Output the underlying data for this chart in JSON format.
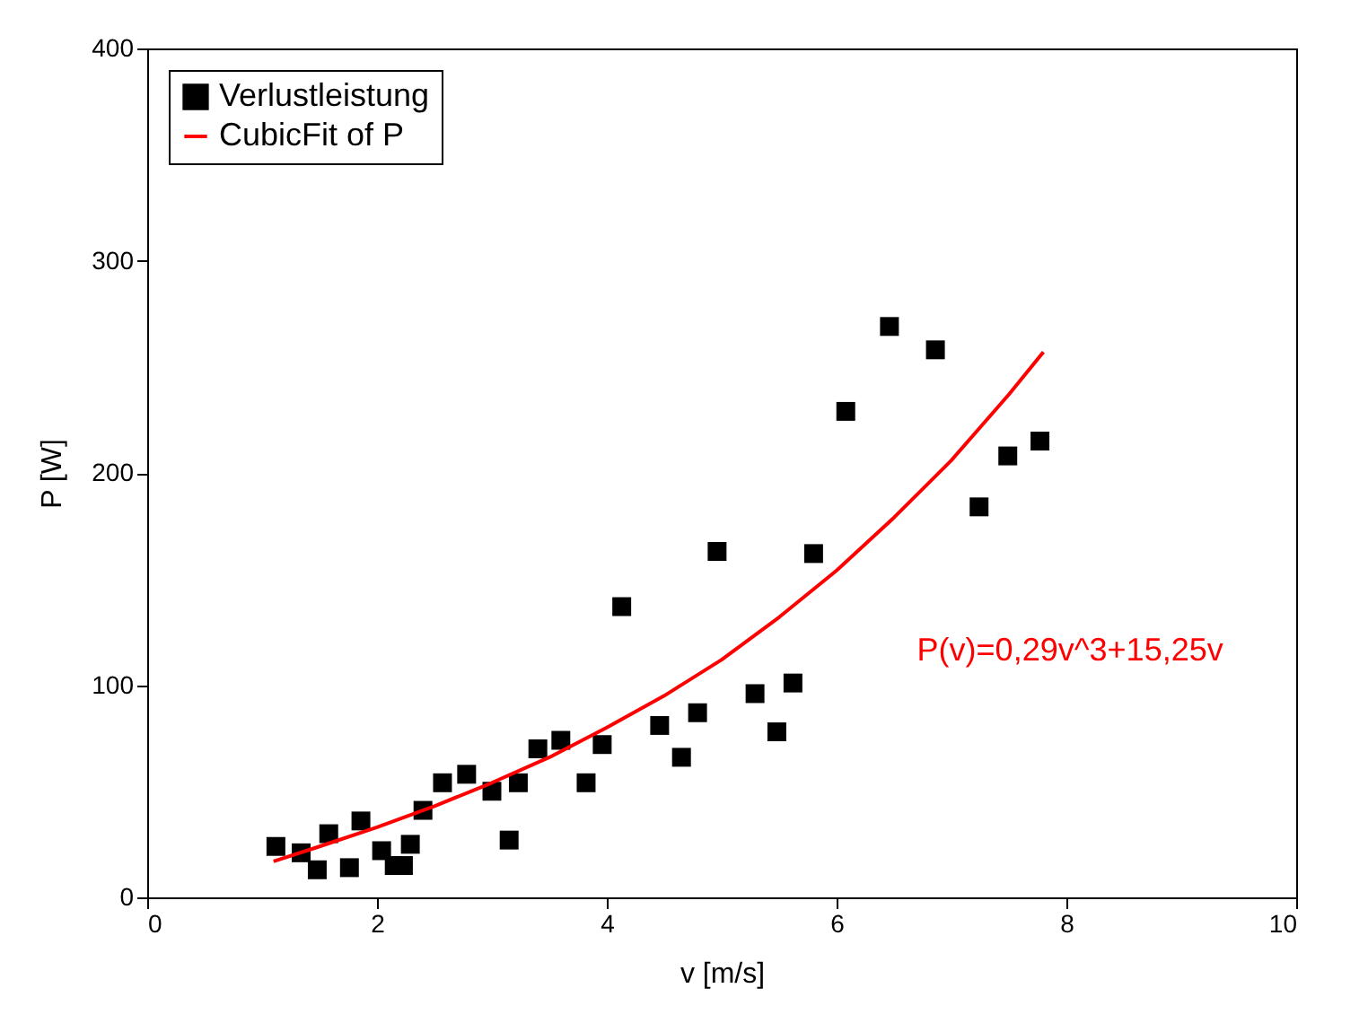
{
  "chart_data": {
    "type": "scatter",
    "xlabel": "v [m/s]",
    "ylabel": "P [W]",
    "xlim": [
      0,
      10
    ],
    "xticks": [
      0,
      2,
      4,
      6,
      8,
      10
    ],
    "ylim": [
      0,
      400
    ],
    "yticks": [
      0,
      100,
      200,
      300,
      400
    ],
    "grid": false,
    "legend": "top left",
    "series": [
      {
        "name": "Verlustleistung",
        "marker": "square",
        "color": "#000000",
        "x": [
          1.12,
          1.34,
          1.48,
          1.58,
          1.76,
          1.86,
          2.04,
          2.15,
          2.23,
          2.29,
          2.4,
          2.57,
          2.78,
          3.0,
          3.15,
          3.23,
          3.4,
          3.6,
          3.82,
          3.96,
          4.13,
          4.46,
          4.65,
          4.79,
          4.96,
          5.29,
          5.48,
          5.62,
          5.8,
          6.08,
          6.46,
          6.86,
          7.24,
          7.49,
          7.77
        ],
        "values": [
          24,
          21,
          13,
          30,
          14,
          36,
          22,
          15,
          15,
          25,
          41,
          54,
          58,
          50,
          27,
          54,
          70,
          74,
          54,
          72,
          137,
          81,
          66,
          87,
          163,
          96,
          78,
          101,
          162,
          229,
          269,
          258,
          184,
          208,
          215
        ]
      },
      {
        "name": "CubicFit of P",
        "type": "line",
        "line_style": "solid",
        "color": "#ff0000",
        "x": [
          1.1,
          1.5,
          2,
          2.5,
          3,
          3.5,
          4,
          4.5,
          5,
          5.5,
          6,
          6.5,
          7,
          7.5,
          7.8
        ],
        "values": [
          17,
          24,
          33,
          43,
          54,
          66,
          80,
          95,
          112,
          132,
          154,
          179,
          206,
          237,
          257
        ]
      }
    ],
    "annotations": [
      "P(v)=0,29v^3+15,25v"
    ]
  }
}
